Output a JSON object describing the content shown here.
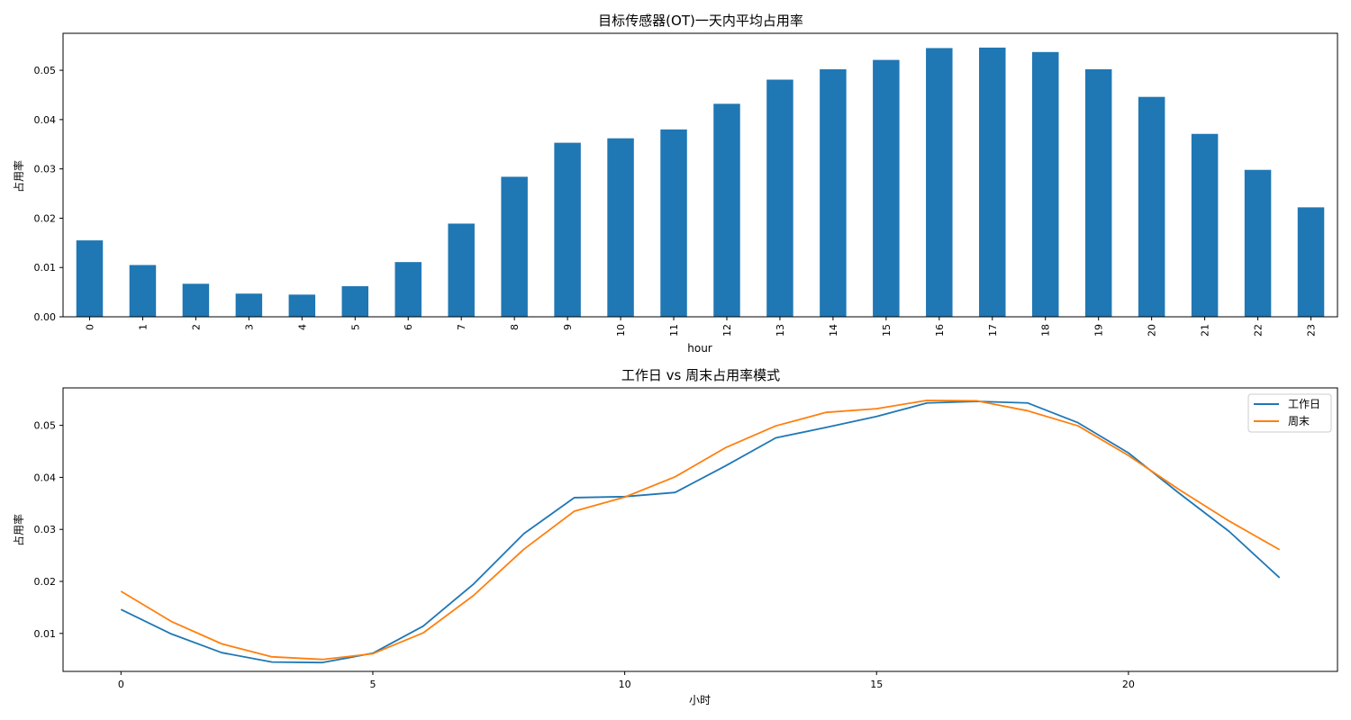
{
  "chart_data": [
    {
      "type": "bar",
      "title": "目标传感器(OT)一天内平均占用率",
      "xlabel": "hour",
      "ylabel": "占用率",
      "categories": [
        "0",
        "1",
        "2",
        "3",
        "4",
        "5",
        "6",
        "7",
        "8",
        "9",
        "10",
        "11",
        "12",
        "13",
        "14",
        "15",
        "16",
        "17",
        "18",
        "19",
        "20",
        "21",
        "22",
        "23"
      ],
      "values": [
        0.0155,
        0.0105,
        0.0067,
        0.0047,
        0.0045,
        0.0062,
        0.0111,
        0.0189,
        0.0284,
        0.0353,
        0.0362,
        0.038,
        0.0432,
        0.0481,
        0.0502,
        0.0521,
        0.0545,
        0.0546,
        0.0537,
        0.0502,
        0.0446,
        0.0371,
        0.0298,
        0.0222
      ],
      "ylim": [
        0,
        0.0575
      ],
      "yticks": [
        0.0,
        0.01,
        0.02,
        0.03,
        0.04,
        0.05
      ],
      "ytick_labels": [
        "0.00",
        "0.01",
        "0.02",
        "0.03",
        "0.04",
        "0.05"
      ],
      "color": "#1f77b4",
      "grid": false
    },
    {
      "type": "line",
      "title": "工作日 vs 周末占用率模式",
      "xlabel": "小时",
      "ylabel": "占用率",
      "x": [
        0,
        1,
        2,
        3,
        4,
        5,
        6,
        7,
        8,
        9,
        10,
        11,
        12,
        13,
        14,
        15,
        16,
        17,
        18,
        19,
        20,
        21,
        22,
        23
      ],
      "series": [
        {
          "name": "工作日",
          "color": "#1f77b4",
          "values": [
            0.0146,
            0.0099,
            0.0063,
            0.0045,
            0.0044,
            0.0062,
            0.0114,
            0.0195,
            0.0292,
            0.0361,
            0.0363,
            0.0371,
            0.0422,
            0.0476,
            0.0496,
            0.0517,
            0.0543,
            0.0546,
            0.0543,
            0.0505,
            0.0447,
            0.037,
            0.0296,
            0.0207
          ]
        },
        {
          "name": "周末",
          "color": "#ff7f0e",
          "values": [
            0.0181,
            0.0123,
            0.008,
            0.0055,
            0.005,
            0.0061,
            0.0101,
            0.0173,
            0.0262,
            0.0335,
            0.0362,
            0.0401,
            0.0457,
            0.0499,
            0.0525,
            0.0532,
            0.0548,
            0.0547,
            0.0528,
            0.0499,
            0.0442,
            0.0377,
            0.0316,
            0.0261
          ]
        }
      ],
      "xlim": [
        -1.15,
        24.15
      ],
      "ylim": [
        0.0027,
        0.0572
      ],
      "xticks": [
        0,
        5,
        10,
        15,
        20
      ],
      "xtick_labels": [
        "0",
        "5",
        "10",
        "15",
        "20"
      ],
      "yticks": [
        0.01,
        0.02,
        0.03,
        0.04,
        0.05
      ],
      "ytick_labels": [
        "0.01",
        "0.02",
        "0.03",
        "0.04",
        "0.05"
      ],
      "legend": "top-right",
      "grid": false
    }
  ]
}
